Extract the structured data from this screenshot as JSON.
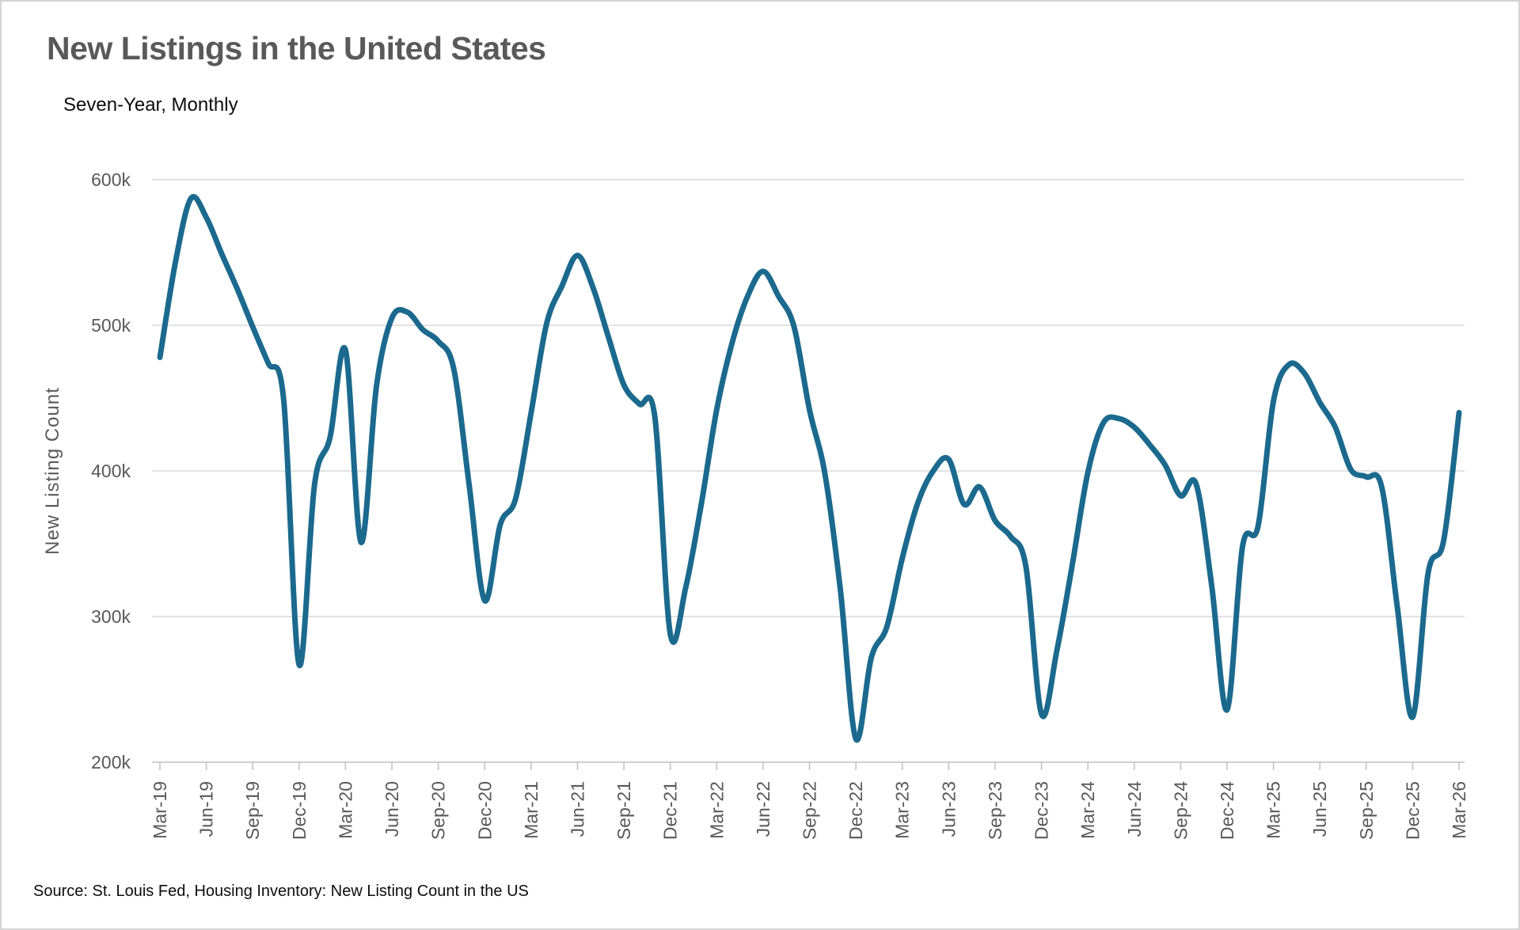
{
  "title": "New Listings in the United States",
  "subtitle": "Seven-Year, Monthly",
  "source": "Source: St. Louis Fed, Housing Inventory: New Listing Count in the US",
  "colors": {
    "line": "#1b6a8e",
    "grid": "#d9d9d9",
    "axis": "#bfbfbf",
    "title_text": "#595959",
    "tick_text": "#595959",
    "body_text": "#0d0d0d"
  },
  "chart_data": {
    "type": "line",
    "smooth": true,
    "title": "New Listings in the United States",
    "subtitle": "Seven-Year, Monthly",
    "xlabel": "",
    "ylabel": "New Listing Count",
    "unit": "thousands of listings",
    "ylim": [
      200,
      600
    ],
    "grid": "horizontal",
    "legend_position": "none",
    "start_month": "Mar-19",
    "end_month": "Mar-26",
    "x_tick_interval_months": 3,
    "x_tick_labels": [
      "Mar-19",
      "Jun-19",
      "Sep-19",
      "Dec-19",
      "Mar-20",
      "Jun-20",
      "Sep-20",
      "Dec-20",
      "Mar-21",
      "Jun-21",
      "Sep-21",
      "Dec-21",
      "Mar-22",
      "Jun-22",
      "Sep-22",
      "Dec-22",
      "Mar-23",
      "Jun-23",
      "Sep-23",
      "Dec-23",
      "Mar-24",
      "Jun-24",
      "Sep-24",
      "Dec-24",
      "Mar-25",
      "Jun-25",
      "Sep-25",
      "Dec-25",
      "Mar-26"
    ],
    "y_ticks": [
      {
        "label": "600k",
        "value": 600
      },
      {
        "label": "500k",
        "value": 500
      },
      {
        "label": "400k",
        "value": 400
      },
      {
        "label": "300k",
        "value": 300
      },
      {
        "label": "200k",
        "value": 200
      }
    ],
    "values": [
      478,
      543,
      587,
      574,
      549,
      525,
      499,
      474,
      449,
      267,
      391,
      423,
      483,
      351,
      458,
      505,
      509,
      497,
      489,
      470,
      390,
      311,
      363,
      381,
      440,
      501,
      527,
      548,
      526,
      492,
      459,
      446,
      437,
      288,
      320,
      377,
      442,
      488,
      520,
      537,
      520,
      499,
      442,
      398,
      318,
      216,
      272,
      293,
      340,
      378,
      400,
      408,
      377,
      389,
      366,
      355,
      334,
      233,
      277,
      336,
      399,
      433,
      436,
      430,
      418,
      404,
      383,
      391,
      322,
      236,
      348,
      362,
      448,
      473,
      467,
      447,
      430,
      401,
      396,
      389,
      307,
      231,
      330,
      352,
      440
    ]
  }
}
